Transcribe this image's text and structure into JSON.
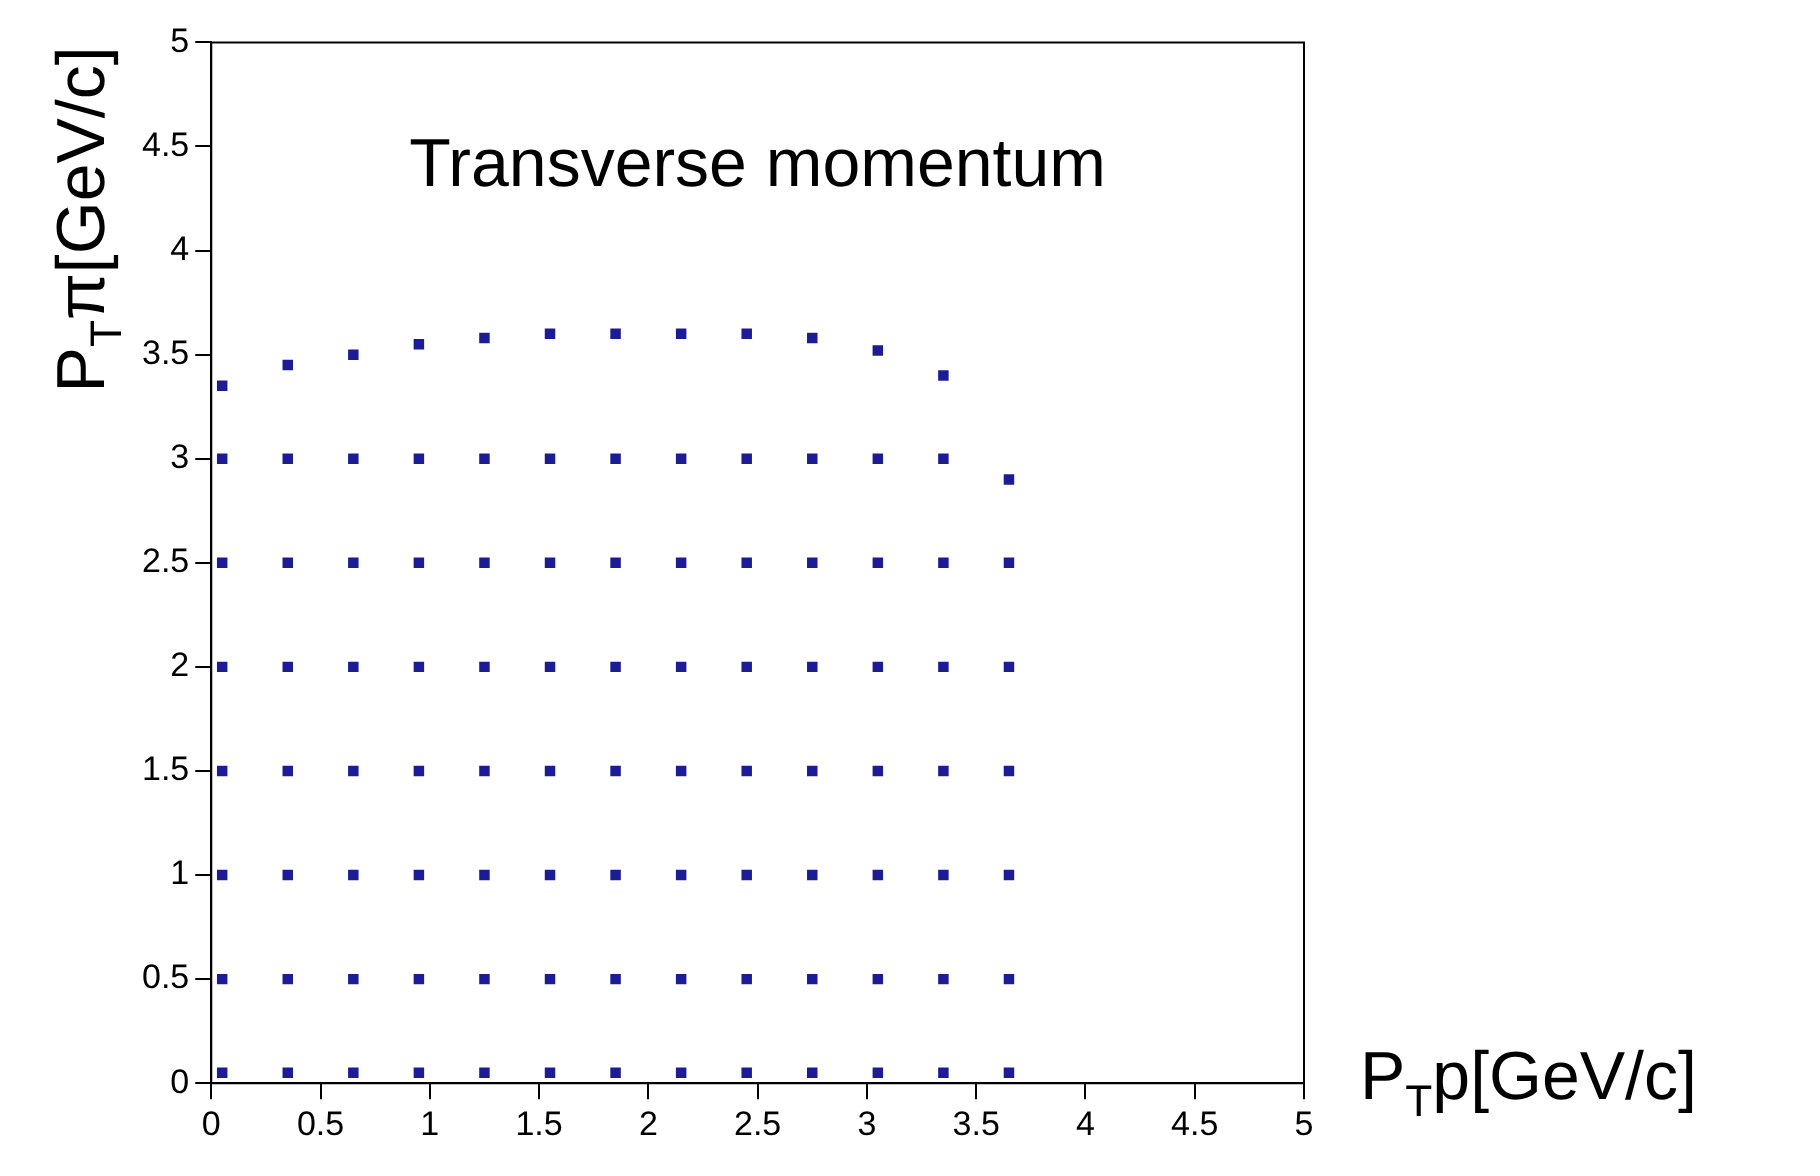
{
  "chart_data": {
    "type": "scatter",
    "title": "Transverse momentum",
    "xlabel": "P$_{T}$p[GeV/c]",
    "ylabel": "P$_{T}$π[GeV/c]",
    "x": [
      0.05,
      0.05,
      0.05,
      0.05,
      0.05,
      0.05,
      0.05,
      0.05,
      0.35,
      0.35,
      0.35,
      0.35,
      0.35,
      0.35,
      0.35,
      0.35,
      0.65,
      0.65,
      0.65,
      0.65,
      0.65,
      0.65,
      0.65,
      0.65,
      0.95,
      0.95,
      0.95,
      0.95,
      0.95,
      0.95,
      0.95,
      0.95,
      1.25,
      1.25,
      1.25,
      1.25,
      1.25,
      1.25,
      1.25,
      1.25,
      1.55,
      1.55,
      1.55,
      1.55,
      1.55,
      1.55,
      1.55,
      1.55,
      1.85,
      1.85,
      1.85,
      1.85,
      1.85,
      1.85,
      1.85,
      1.85,
      2.15,
      2.15,
      2.15,
      2.15,
      2.15,
      2.15,
      2.15,
      2.15,
      2.45,
      2.45,
      2.45,
      2.45,
      2.45,
      2.45,
      2.45,
      2.45,
      2.75,
      2.75,
      2.75,
      2.75,
      2.75,
      2.75,
      2.75,
      2.75,
      3.05,
      3.05,
      3.05,
      3.05,
      3.05,
      3.05,
      3.05,
      3.05,
      3.35,
      3.35,
      3.35,
      3.35,
      3.35,
      3.35,
      3.35,
      3.35,
      3.65,
      3.65,
      3.65,
      3.65,
      3.65,
      3.65,
      3.65
    ],
    "values": [
      0.05,
      0.5,
      1,
      1.5,
      2,
      2.5,
      3,
      3.35,
      0.05,
      0.5,
      1,
      1.5,
      2,
      2.5,
      3,
      3.45,
      0.05,
      0.5,
      1,
      1.5,
      2,
      2.5,
      3,
      3.5,
      0.05,
      0.5,
      1,
      1.5,
      2,
      2.5,
      3,
      3.55,
      0.05,
      0.5,
      1,
      1.5,
      2,
      2.5,
      3,
      3.58,
      0.05,
      0.5,
      1,
      1.5,
      2,
      2.5,
      3,
      3.6,
      0.05,
      0.5,
      1,
      1.5,
      2,
      2.5,
      3,
      3.6,
      0.05,
      0.5,
      1,
      1.5,
      2,
      2.5,
      3,
      3.6,
      0.05,
      0.5,
      1,
      1.5,
      2,
      2.5,
      3,
      3.6,
      0.05,
      0.5,
      1,
      1.5,
      2,
      2.5,
      3,
      3.58,
      0.05,
      0.5,
      1,
      1.5,
      2,
      2.5,
      3,
      3.52,
      0.05,
      0.5,
      1,
      1.5,
      2,
      2.5,
      3,
      3.4,
      0.05,
      0.5,
      1,
      1.5,
      2,
      2.5,
      2.9
    ],
    "color": "#1c1c96",
    "marker": "square",
    "xlim": [
      0,
      5
    ],
    "xticks": [
      0,
      0.5,
      1,
      1.5,
      2,
      2.5,
      3,
      3.5,
      4,
      4.5,
      5
    ],
    "ylim": [
      0,
      5
    ],
    "yticks": [
      0,
      0.5,
      1,
      1.5,
      2,
      2.5,
      3,
      3.5,
      4,
      4.5,
      5
    ],
    "grid": false,
    "legend": false
  }
}
